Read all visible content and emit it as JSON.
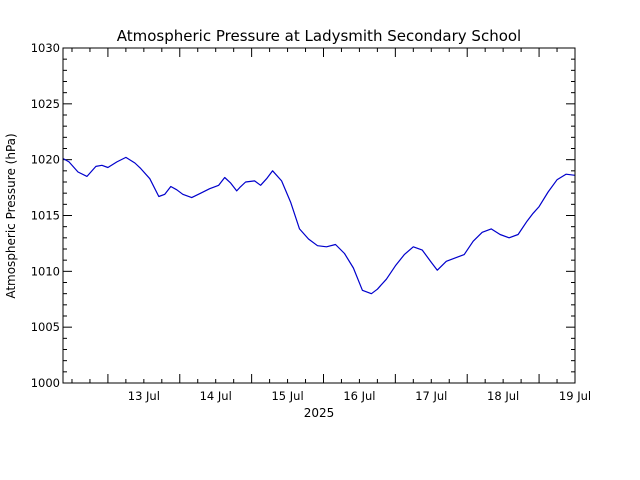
{
  "chart_data": {
    "type": "line",
    "title": "Atmospheric Pressure at Ladysmith Secondary School",
    "ylabel": "Atmospheric Pressure (hPa)",
    "xlabel": "2025",
    "ylim": [
      1000,
      1030
    ],
    "xlim": [
      "2025-07-12T09:00",
      "2025-07-19T12:00"
    ],
    "y_ticks": [
      {
        "value": 1000,
        "label": "1000"
      },
      {
        "value": 1005,
        "label": "1005"
      },
      {
        "value": 1010,
        "label": "1010"
      },
      {
        "value": 1015,
        "label": "1015"
      },
      {
        "value": 1020,
        "label": "1020"
      },
      {
        "value": 1025,
        "label": "1025"
      },
      {
        "value": 1030,
        "label": "1030"
      }
    ],
    "x_ticks": [
      {
        "value": "2025-07-13T00:00",
        "label": "13 Jul"
      },
      {
        "value": "2025-07-14T00:00",
        "label": "14 Jul"
      },
      {
        "value": "2025-07-15T00:00",
        "label": "15 Jul"
      },
      {
        "value": "2025-07-16T00:00",
        "label": "16 Jul"
      },
      {
        "value": "2025-07-17T00:00",
        "label": "17 Jul"
      },
      {
        "value": "2025-07-18T00:00",
        "label": "18 Jul"
      },
      {
        "value": "2025-07-19T00:00",
        "label": "19 Jul"
      }
    ],
    "line_color": "#0000cc",
    "series": [
      {
        "x": [
          "2025-07-12T09:00",
          "2025-07-12T11:00",
          "2025-07-12T14:00",
          "2025-07-12T17:00",
          "2025-07-12T20:00",
          "2025-07-12T22:00",
          "2025-07-13T00:00",
          "2025-07-13T03:00",
          "2025-07-13T06:00",
          "2025-07-13T09:00",
          "2025-07-13T11:00",
          "2025-07-13T14:00",
          "2025-07-13T17:00",
          "2025-07-13T19:00",
          "2025-07-13T21:00",
          "2025-07-13T23:00",
          "2025-07-14T01:00",
          "2025-07-14T04:00",
          "2025-07-14T07:00",
          "2025-07-14T10:00",
          "2025-07-14T13:00",
          "2025-07-14T15:00",
          "2025-07-14T17:00",
          "2025-07-14T19:00",
          "2025-07-14T20:00",
          "2025-07-14T22:00",
          "2025-07-15T01:00",
          "2025-07-15T03:00",
          "2025-07-15T05:00",
          "2025-07-15T07:00",
          "2025-07-15T10:00",
          "2025-07-15T13:00",
          "2025-07-15T16:00",
          "2025-07-15T19:00",
          "2025-07-15T22:00",
          "2025-07-16T01:00",
          "2025-07-16T04:00",
          "2025-07-16T07:00",
          "2025-07-16T10:00",
          "2025-07-16T13:00",
          "2025-07-16T16:00",
          "2025-07-16T18:00",
          "2025-07-16T19:00",
          "2025-07-16T21:00",
          "2025-07-17T00:00",
          "2025-07-17T03:00",
          "2025-07-17T06:00",
          "2025-07-17T09:00",
          "2025-07-17T12:00",
          "2025-07-17T14:00",
          "2025-07-17T17:00",
          "2025-07-17T20:00",
          "2025-07-17T23:00",
          "2025-07-18T02:00",
          "2025-07-18T05:00",
          "2025-07-18T08:00",
          "2025-07-18T11:00",
          "2025-07-18T14:00",
          "2025-07-18T17:00",
          "2025-07-18T20:00",
          "2025-07-18T22:00",
          "2025-07-19T00:00",
          "2025-07-19T03:00",
          "2025-07-19T06:00",
          "2025-07-19T09:00",
          "2025-07-19T12:00"
        ],
        "y": [
          1020.1,
          1019.8,
          1018.9,
          1018.5,
          1019.4,
          1019.5,
          1019.3,
          1019.8,
          1020.2,
          1019.7,
          1019.2,
          1018.3,
          1016.7,
          1016.9,
          1017.6,
          1017.3,
          1016.9,
          1016.6,
          1017.0,
          1017.4,
          1017.7,
          1018.4,
          1017.9,
          1017.2,
          1017.5,
          1018.0,
          1018.1,
          1017.7,
          1018.3,
          1019.0,
          1018.1,
          1016.2,
          1013.8,
          1012.9,
          1012.3,
          1012.2,
          1012.4,
          1011.6,
          1010.3,
          1008.3,
          1008.0,
          1008.4,
          1008.7,
          1009.3,
          1010.5,
          1011.5,
          1012.2,
          1011.9,
          1010.8,
          1010.1,
          1010.9,
          1011.2,
          1011.5,
          1012.7,
          1013.5,
          1013.8,
          1013.3,
          1013.0,
          1013.3,
          1014.5,
          1015.2,
          1015.8,
          1017.1,
          1018.2,
          1018.7,
          1018.6
        ]
      }
    ]
  }
}
